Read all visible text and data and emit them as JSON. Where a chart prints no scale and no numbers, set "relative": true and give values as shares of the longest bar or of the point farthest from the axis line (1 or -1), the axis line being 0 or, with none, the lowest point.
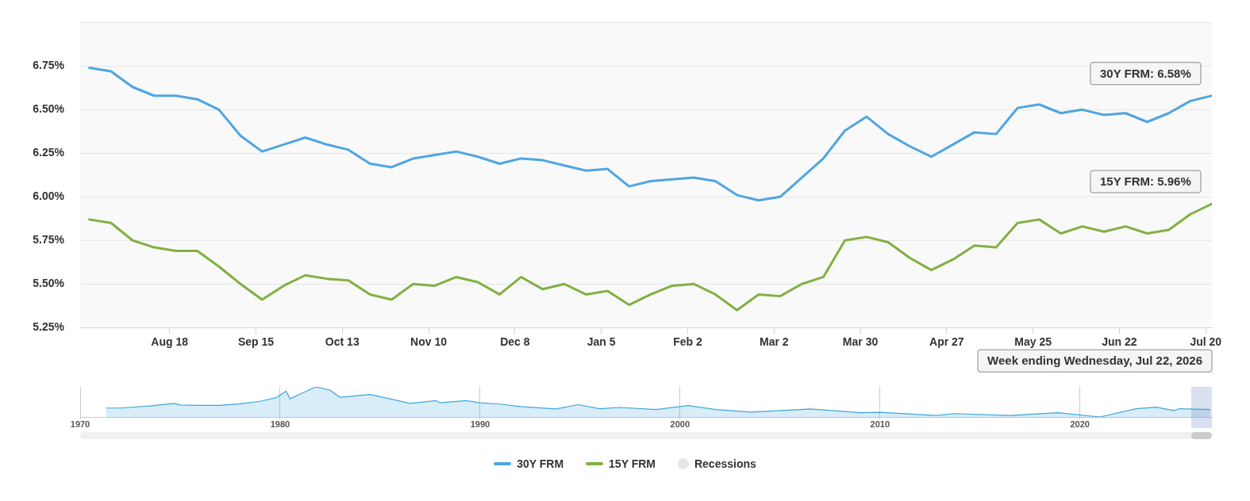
{
  "chart_data": [
    {
      "type": "line",
      "x": [
        "2025-07-23",
        "2025-07-30",
        "2025-08-06",
        "2025-08-13",
        "2025-08-20",
        "2025-08-27",
        "2025-09-03",
        "2025-09-10",
        "2025-09-17",
        "2025-09-24",
        "2025-10-01",
        "2025-10-08",
        "2025-10-15",
        "2025-10-22",
        "2025-10-29",
        "2025-11-05",
        "2025-11-12",
        "2025-11-19",
        "2025-11-26",
        "2025-12-03",
        "2025-12-10",
        "2025-12-17",
        "2025-12-24",
        "2025-12-31",
        "2026-01-07",
        "2026-01-14",
        "2026-01-21",
        "2026-01-28",
        "2026-02-04",
        "2026-02-11",
        "2026-02-18",
        "2026-02-25",
        "2026-03-04",
        "2026-03-11",
        "2026-03-18",
        "2026-03-25",
        "2026-04-01",
        "2026-04-08",
        "2026-04-15",
        "2026-04-22",
        "2026-04-29",
        "2026-05-06",
        "2026-05-13",
        "2026-05-20",
        "2026-05-27",
        "2026-06-03",
        "2026-06-10",
        "2026-06-17",
        "2026-06-24",
        "2026-07-01",
        "2026-07-08",
        "2026-07-15",
        "2026-07-22"
      ],
      "series": [
        {
          "name": "30Y FRM",
          "color": "#4ea6e0",
          "values": [
            6.74,
            6.72,
            6.63,
            6.58,
            6.58,
            6.56,
            6.5,
            6.35,
            6.26,
            6.3,
            6.34,
            6.3,
            6.27,
            6.19,
            6.17,
            6.22,
            6.24,
            6.26,
            6.23,
            6.19,
            6.22,
            6.21,
            6.18,
            6.15,
            6.16,
            6.06,
            6.09,
            6.1,
            6.11,
            6.09,
            6.01,
            5.98,
            6.0,
            6.11,
            6.22,
            6.38,
            6.46,
            6.36,
            6.29,
            6.23,
            6.3,
            6.37,
            6.36,
            6.51,
            6.53,
            6.48,
            6.5,
            6.47,
            6.48,
            6.43,
            6.48,
            6.55,
            6.58
          ]
        },
        {
          "name": "15Y FRM",
          "color": "#82b041",
          "values": [
            5.87,
            5.85,
            5.75,
            5.71,
            5.69,
            5.69,
            5.6,
            5.5,
            5.41,
            5.49,
            5.55,
            5.53,
            5.52,
            5.44,
            5.41,
            5.5,
            5.49,
            5.54,
            5.51,
            5.44,
            5.54,
            5.47,
            5.5,
            5.44,
            5.46,
            5.38,
            5.44,
            5.49,
            5.5,
            5.44,
            5.35,
            5.44,
            5.43,
            5.5,
            5.54,
            5.75,
            5.77,
            5.74,
            5.65,
            5.58,
            5.64,
            5.72,
            5.71,
            5.85,
            5.87,
            5.79,
            5.83,
            5.8,
            5.83,
            5.79,
            5.81,
            5.9,
            5.96
          ]
        },
        {
          "name": "Recessions",
          "color": "#e6e6e6",
          "type": "area",
          "values": [
            null,
            null,
            null,
            null,
            null,
            null,
            null,
            null,
            null,
            null,
            null,
            null,
            null,
            null,
            null,
            null,
            null,
            null,
            null,
            null,
            null,
            null,
            null,
            null,
            null,
            null,
            null,
            null,
            null,
            null,
            null,
            null,
            null,
            null,
            null,
            null,
            null,
            null,
            null,
            null,
            null,
            null,
            null,
            null,
            null,
            null,
            null,
            null,
            null,
            null,
            null,
            null,
            null
          ]
        }
      ],
      "xlim": [
        "2025-07-20",
        "2026-07-22"
      ],
      "xticks": [
        {
          "value": "2025-08-18",
          "label": "Aug 18"
        },
        {
          "value": "2025-09-15",
          "label": "Sep 15"
        },
        {
          "value": "2025-10-13",
          "label": "Oct 13"
        },
        {
          "value": "2025-11-10",
          "label": "Nov 10"
        },
        {
          "value": "2025-12-08",
          "label": "Dec 8"
        },
        {
          "value": "2026-01-05",
          "label": "Jan 5"
        },
        {
          "value": "2026-02-02",
          "label": "Feb 2"
        },
        {
          "value": "2026-03-02",
          "label": "Mar 2"
        },
        {
          "value": "2026-03-30",
          "label": "Mar 30"
        },
        {
          "value": "2026-04-27",
          "label": "Apr 27"
        },
        {
          "value": "2026-05-25",
          "label": "May 25"
        },
        {
          "value": "2026-06-22",
          "label": "Jun 22"
        },
        {
          "value": "2026-07-20",
          "label": "Jul 20"
        }
      ],
      "ylim": [
        5.25,
        7.0
      ],
      "yticks": [
        {
          "value": 5.25,
          "label": "5.25%"
        },
        {
          "value": 5.5,
          "label": "5.50%"
        },
        {
          "value": 5.75,
          "label": "5.75%"
        },
        {
          "value": 6.0,
          "label": "6.00%"
        },
        {
          "value": 6.25,
          "label": "6.25%"
        },
        {
          "value": 6.5,
          "label": "6.50%"
        },
        {
          "value": 6.75,
          "label": "6.75%"
        },
        {
          "value": 7.0,
          "label": null
        }
      ],
      "grid": "y",
      "legend": "bottom",
      "marker": "none",
      "line_style": "solid",
      "annotations": [
        {
          "text": "30Y FRM: 6.58%",
          "x": "2026-07-22",
          "y": 6.58
        },
        {
          "text": "15Y FRM: 5.96%",
          "x": "2026-07-22",
          "y": 5.96
        },
        "Week ending Wednesday, Jul 22, 2026"
      ]
    },
    {
      "type": "area",
      "relative": true,
      "color": "#3ea6dc",
      "x": [
        1971.3,
        1972,
        1973.5,
        1974.7,
        1975,
        1976,
        1977,
        1978,
        1979,
        1979.8,
        1980.3,
        1980.5,
        1981,
        1981.8,
        1982.5,
        1983,
        1984.5,
        1985.5,
        1986.5,
        1987.8,
        1988,
        1989.3,
        1990,
        1991,
        1992,
        1993.8,
        1994.9,
        1996,
        1997,
        1998.8,
        2000.4,
        2001.8,
        2003.5,
        2006.5,
        2008,
        2009,
        2010,
        2012.8,
        2013.7,
        2016.5,
        2018.9,
        2021,
        2022.8,
        2023.8,
        2024.7,
        2025,
        2026.5
      ],
      "values": [
        0.31,
        0.31,
        0.38,
        0.46,
        0.41,
        0.4,
        0.4,
        0.45,
        0.53,
        0.65,
        0.86,
        0.61,
        0.77,
        1,
        0.89,
        0.66,
        0.75,
        0.61,
        0.46,
        0.55,
        0.48,
        0.55,
        0.48,
        0.44,
        0.36,
        0.28,
        0.42,
        0.29,
        0.33,
        0.26,
        0.39,
        0.26,
        0.18,
        0.28,
        0.21,
        0.16,
        0.17,
        0.07,
        0.13,
        0.07,
        0.16,
        0.02,
        0.29,
        0.34,
        0.23,
        0.29,
        0.26
      ],
      "xlim": [
        1970,
        2026.6
      ],
      "xticks": [
        1970,
        1980,
        1990,
        2000,
        2010,
        2020
      ],
      "grid": "x"
    }
  ]
}
